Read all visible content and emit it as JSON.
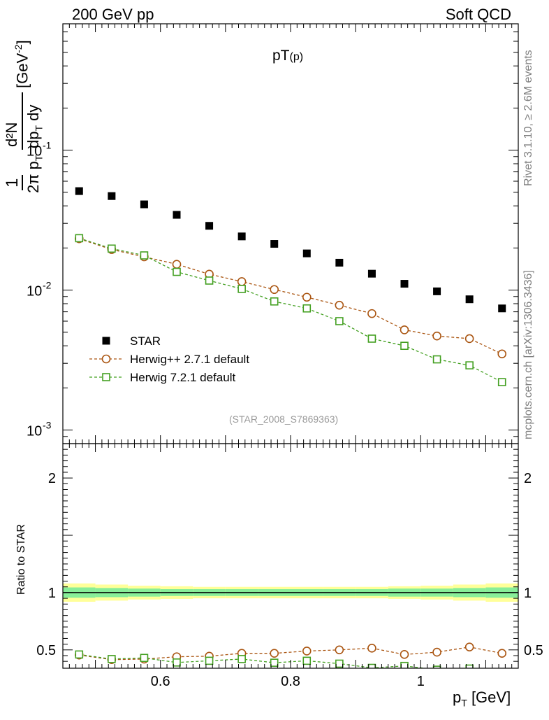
{
  "header": {
    "left": "200 GeV pp",
    "right": "Soft QCD"
  },
  "side_text": {
    "rivet": "Rivet 3.1.10, ≥ 2.6M events",
    "source": "mcplots.cern.ch [arXiv:1306.3436]"
  },
  "plot_title": {
    "main": "pT",
    "sub": "(p)"
  },
  "watermark": "(STAR_2008_S7869363)",
  "upper_ylabel": {
    "prefix": "1",
    "denominator": "2π p",
    "numerator": "d²N",
    "unit": "[GeV",
    "unit_exp": "-2",
    "unit_close": "]",
    "dp": "dp",
    "sub_t": "T",
    "dy": "dy"
  },
  "ratio_ylabel": "Ratio to STAR",
  "xlabel": {
    "main": "p",
    "sub": "T",
    "unit": "[GeV]"
  },
  "legend": [
    {
      "label": "STAR",
      "marker": "filled-square",
      "color": "#000000"
    },
    {
      "label": "Herwig++ 2.7.1 default",
      "marker": "open-circle",
      "color": "#aa5511"
    },
    {
      "label": "Herwig 7.2.1 default",
      "marker": "open-square",
      "color": "#44a022"
    }
  ],
  "chart_data": [
    {
      "type": "scatter",
      "panel": "main",
      "yscale": "log",
      "xlim": [
        0.45,
        1.15
      ],
      "ylim": [
        0.0008,
        0.8
      ],
      "yticks": [
        {
          "value": 0.001,
          "label_base": "10",
          "label_exp": "-3"
        },
        {
          "value": 0.01,
          "label_base": "10",
          "label_exp": "-2"
        },
        {
          "value": 0.1,
          "label_base": "10",
          "label_exp": "-1"
        }
      ],
      "x": [
        0.475,
        0.525,
        0.575,
        0.625,
        0.675,
        0.725,
        0.775,
        0.825,
        0.875,
        0.925,
        0.975,
        1.025,
        1.075,
        1.125
      ],
      "series": [
        {
          "name": "STAR",
          "color": "#000000",
          "marker": "filled-square",
          "line": "none",
          "values": [
            0.051,
            0.047,
            0.041,
            0.0345,
            0.0288,
            0.0242,
            0.0214,
            0.0183,
            0.0157,
            0.0131,
            0.0111,
            0.0098,
            0.0086,
            0.0074
          ]
        },
        {
          "name": "Herwig++ 2.7.1 default",
          "color": "#aa5511",
          "marker": "open-circle",
          "line": "dashed",
          "values": [
            0.0233,
            0.0195,
            0.0173,
            0.0153,
            0.013,
            0.0115,
            0.0101,
            0.0089,
            0.0078,
            0.0068,
            0.0052,
            0.0047,
            0.0045,
            0.0035
          ]
        },
        {
          "name": "Herwig 7.2.1 default",
          "color": "#44a022",
          "marker": "open-square",
          "line": "dashed",
          "values": [
            0.0235,
            0.0198,
            0.0177,
            0.0135,
            0.0117,
            0.0102,
            0.0083,
            0.0074,
            0.006,
            0.0045,
            0.004,
            0.0032,
            0.0029,
            0.0022
          ]
        }
      ]
    },
    {
      "type": "scatter",
      "panel": "ratio",
      "xlim": [
        0.45,
        1.15
      ],
      "ylim": [
        0.34,
        2.3
      ],
      "ylabel": "Ratio to STAR",
      "yticks": [
        {
          "value": 0.5,
          "label": "0.5"
        },
        {
          "value": 1,
          "label": "1"
        },
        {
          "value": 2,
          "label": "2"
        }
      ],
      "xticks": [
        {
          "value": 0.6,
          "label": "0.6"
        },
        {
          "value": 0.8,
          "label": "0.8"
        },
        {
          "value": 1.0,
          "label": "1"
        }
      ],
      "reference_line": 1,
      "bands": {
        "inner_color": "#88ee99",
        "outer_color": "#ffff99",
        "inner": [
          0.045,
          0.04,
          0.035,
          0.03,
          0.03,
          0.03,
          0.03,
          0.03,
          0.03,
          0.03,
          0.035,
          0.035,
          0.04,
          0.045
        ],
        "outer": [
          0.08,
          0.07,
          0.06,
          0.055,
          0.05,
          0.05,
          0.05,
          0.05,
          0.05,
          0.05,
          0.055,
          0.06,
          0.07,
          0.08
        ]
      },
      "x": [
        0.475,
        0.525,
        0.575,
        0.625,
        0.675,
        0.725,
        0.775,
        0.825,
        0.875,
        0.925,
        0.975,
        1.025,
        1.075,
        1.125
      ],
      "series": [
        {
          "name": "Herwig++ 2.7.1 default",
          "color": "#aa5511",
          "marker": "open-circle",
          "line": "dashed",
          "values": [
            0.455,
            0.415,
            0.42,
            0.44,
            0.445,
            0.47,
            0.47,
            0.49,
            0.5,
            0.515,
            0.46,
            0.48,
            0.525,
            0.47
          ],
          "errors": [
            0.01,
            0.02,
            0.01,
            0.01,
            0.01,
            0.015,
            0.015,
            0.015,
            0.02,
            0.02,
            0.02,
            0.02,
            0.025,
            0.025
          ]
        },
        {
          "name": "Herwig 7.2.1 default",
          "color": "#44a022",
          "marker": "open-square",
          "line": "dashed",
          "values": [
            0.46,
            0.42,
            0.43,
            0.39,
            0.405,
            0.42,
            0.388,
            0.405,
            0.38,
            0.343,
            0.36,
            0.327,
            0.337,
            0.297
          ]
        }
      ]
    }
  ]
}
